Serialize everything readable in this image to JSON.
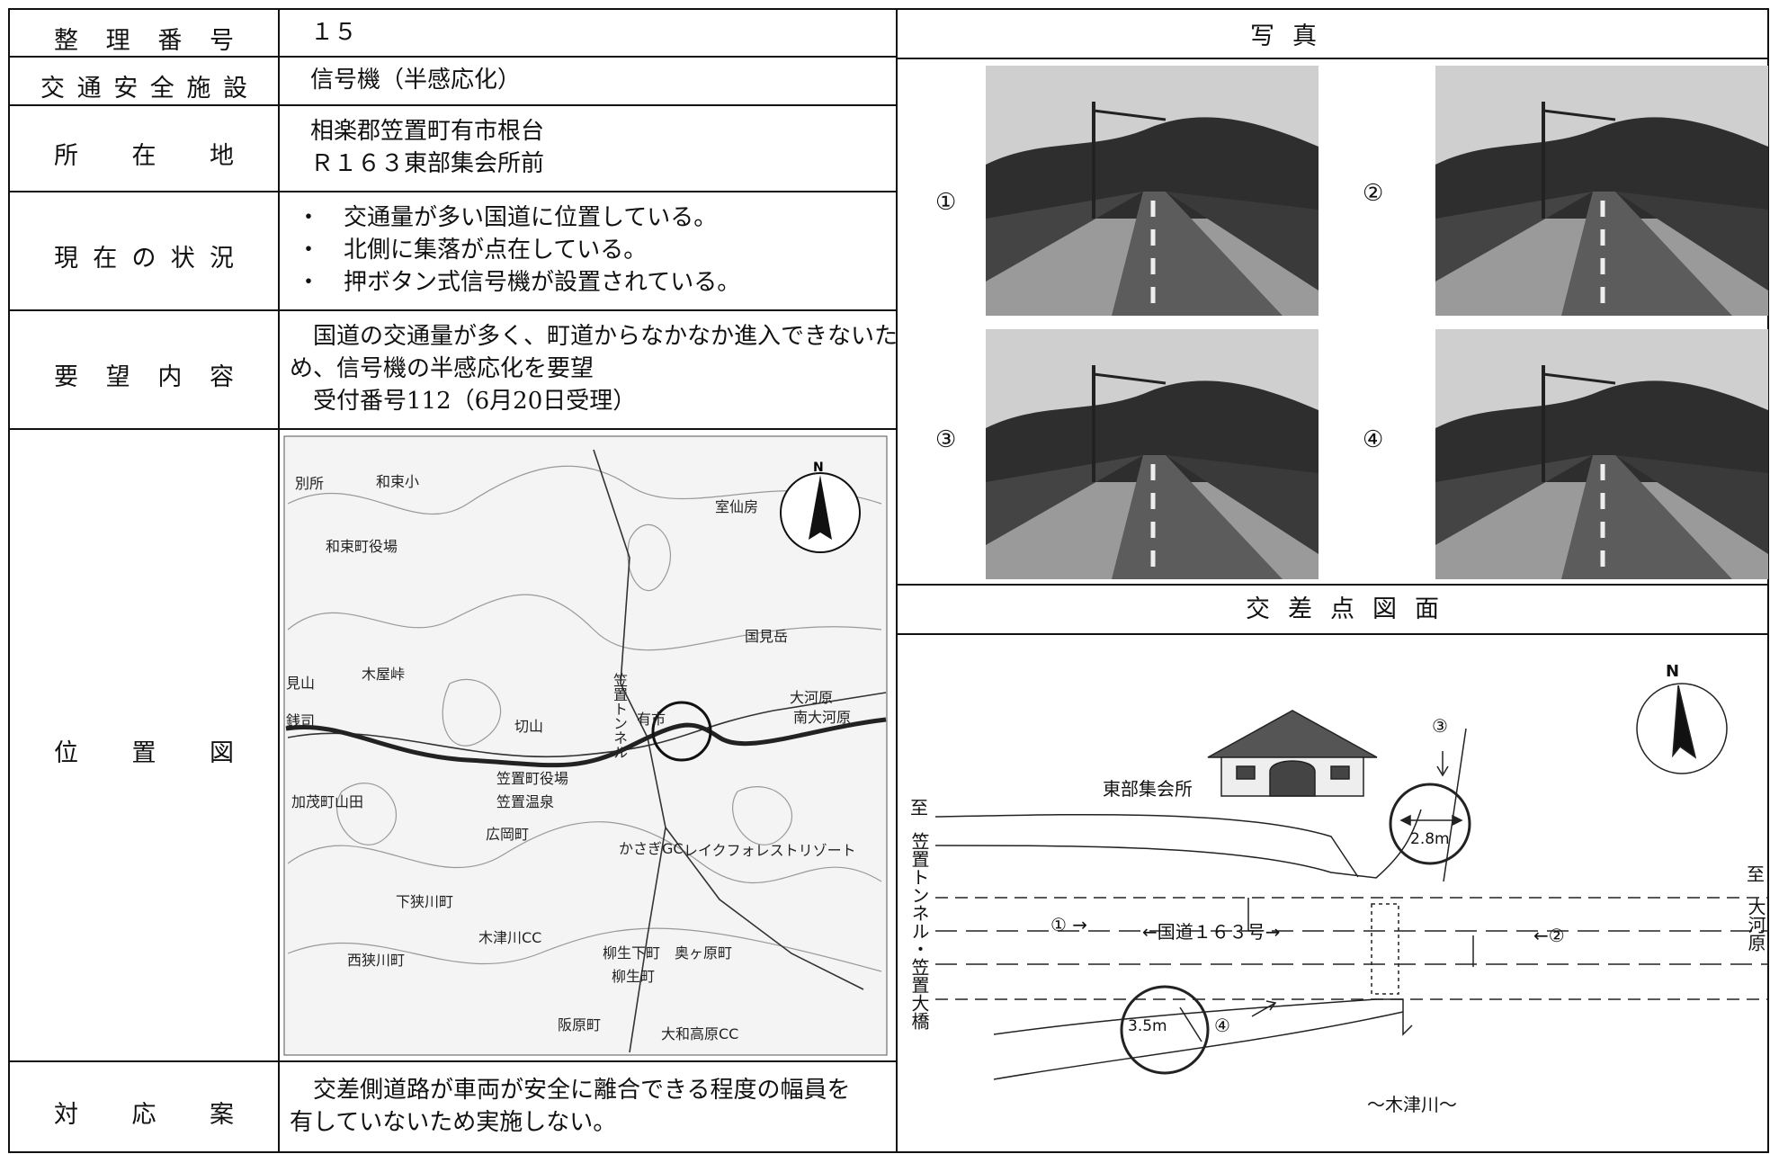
{
  "table": {
    "rows": [
      {
        "label": "整理番号",
        "value": [
          "１５"
        ]
      },
      {
        "label": "交通安全施設",
        "value": [
          "信号機（半感応化）"
        ]
      },
      {
        "label": "所在地",
        "value": [
          "相楽郡笠置町有市根台",
          "Ｒ１６３東部集会所前"
        ]
      },
      {
        "label": "現在の状況",
        "value": [
          "・　交通量が多い国道に位置している。",
          "・　北側に集落が点在している。",
          "・　押ボタン式信号機が設置されている。"
        ]
      },
      {
        "label": "要望内容",
        "value": [
          "　国道の交通量が多く、町道からなかなか進入できないた",
          "め、信号機の半感応化を要望",
          "　受付番号112（6月20日受理）"
        ]
      },
      {
        "label": "位置図"
      },
      {
        "label": "対応案",
        "value": [
          "　交差側道路が車両が安全に離合できる程度の幅員を",
          "有していないため実施しない。"
        ]
      }
    ]
  },
  "map": {
    "labels": [
      "別所",
      "和束小",
      "和束町役場",
      "室仙房",
      "国見岳",
      "木屋峠",
      "見山",
      "銭司",
      "切山",
      "有市",
      "笠置トンネル",
      "大河原",
      "南大河原",
      "加茂町山田",
      "笠置町役場",
      "笠置温泉",
      "広岡町",
      "かさぎGC",
      "レイクフォレストリゾート",
      "下狭川町",
      "木津川CC",
      "西狭川町",
      "柳生下町",
      "奥ヶ原町",
      "柳生町",
      "阪原町",
      "大和高原CC"
    ]
  },
  "photos": {
    "title": "写真",
    "labels": [
      "①",
      "②",
      "③",
      "④"
    ]
  },
  "intersection": {
    "title": "交差点図面",
    "hall": "東部集会所",
    "to_left": "至",
    "left_dest": "笠置トンネル・笠置大橋",
    "to_right": "至",
    "right_dest": "大河原",
    "width_north": "2.8m",
    "width_south": "3.5m",
    "view1": "① →",
    "road": "←国道１６３号→",
    "view2": "←②",
    "view3": "③",
    "view4": "④",
    "river": "～木津川～"
  }
}
